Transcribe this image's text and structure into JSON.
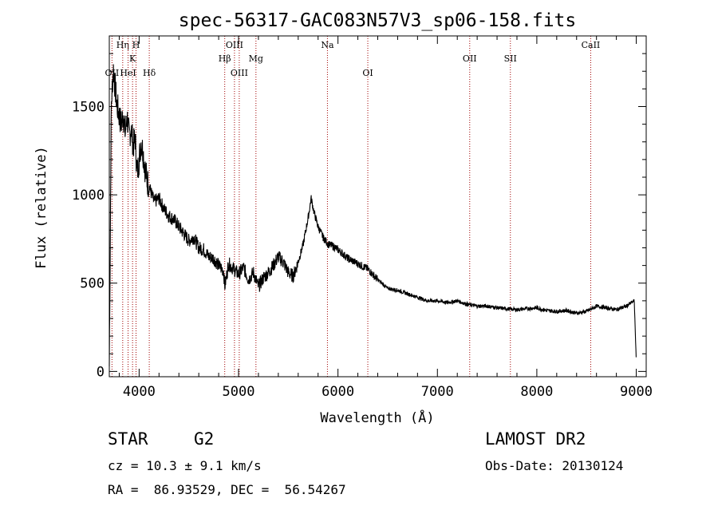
{
  "chart_data": {
    "type": "line",
    "title": "spec-56317-GAC083N57V3_sp06-158.fits",
    "xlabel": "Wavelength (Å)",
    "ylabel": "Flux (relative)",
    "xlim": [
      3700,
      9100
    ],
    "ylim": [
      -30,
      1900
    ],
    "x_ticks": [
      4000,
      5000,
      6000,
      7000,
      8000,
      9000
    ],
    "y_ticks": [
      0,
      500,
      1000,
      1500
    ],
    "x_tick_labels": [
      "4000",
      "5000",
      "6000",
      "7000",
      "8000",
      "9000"
    ],
    "y_tick_labels": [
      "0",
      "500",
      "1000",
      "1500"
    ],
    "grid": false,
    "series": [
      {
        "x": [
          3700,
          3720,
          3740,
          3760,
          3780,
          3800,
          3820,
          3840,
          3860,
          3880,
          3900,
          3920,
          3940,
          3960,
          3980,
          4000,
          4020,
          4040,
          4060,
          4080,
          4100,
          4150,
          4200,
          4250,
          4300,
          4350,
          4400,
          4450,
          4500,
          4550,
          4600,
          4650,
          4700,
          4750,
          4800,
          4850,
          4861,
          4900,
          4950,
          5000,
          5050,
          5100,
          5150,
          5200,
          5250,
          5300,
          5350,
          5400,
          5450,
          5500,
          5550,
          5600,
          5650,
          5700,
          5730,
          5760,
          5800,
          5850,
          5900,
          5950,
          6000,
          6100,
          6200,
          6300,
          6400,
          6500,
          6600,
          6700,
          6800,
          6900,
          7000,
          7100,
          7200,
          7300,
          7400,
          7500,
          7600,
          7700,
          7800,
          7900,
          8000,
          8100,
          8200,
          8300,
          8400,
          8500,
          8600,
          8700,
          8800,
          8900,
          8980,
          9000
        ],
        "y": [
          30,
          1500,
          1720,
          1600,
          1500,
          1450,
          1400,
          1460,
          1350,
          1440,
          1330,
          1380,
          1280,
          1320,
          1120,
          1200,
          1300,
          1240,
          1150,
          1080,
          1050,
          960,
          980,
          920,
          880,
          860,
          820,
          780,
          740,
          760,
          700,
          690,
          650,
          640,
          600,
          570,
          480,
          610,
          580,
          550,
          590,
          520,
          560,
          480,
          530,
          560,
          600,
          650,
          620,
          560,
          540,
          620,
          720,
          870,
          980,
          900,
          820,
          760,
          720,
          710,
          690,
          640,
          610,
          580,
          520,
          470,
          460,
          440,
          420,
          400,
          400,
          390,
          400,
          380,
          370,
          370,
          360,
          355,
          350,
          355,
          360,
          345,
          340,
          345,
          330,
          340,
          370,
          360,
          350,
          370,
          400,
          60
        ]
      }
    ],
    "lines": [
      {
        "name": "OII",
        "x": 3727,
        "row": 3
      },
      {
        "name": "Hη",
        "x": 3835,
        "row": 1
      },
      {
        "name": "HeI",
        "x": 3889,
        "row": 3
      },
      {
        "name": "K",
        "x": 3934,
        "row": 2
      },
      {
        "name": "H",
        "x": 3969,
        "row": 1
      },
      {
        "name": "Hδ",
        "x": 4102,
        "row": 3
      },
      {
        "name": "Hβ",
        "x": 4861,
        "row": 2
      },
      {
        "name": "OIII",
        "x": 4959,
        "row": 1
      },
      {
        "name": "OIII",
        "x": 5007,
        "row": 3
      },
      {
        "name": "Mg",
        "x": 5175,
        "row": 2
      },
      {
        "name": "Na",
        "x": 5894,
        "row": 1
      },
      {
        "name": "OI",
        "x": 6300,
        "row": 3
      },
      {
        "name": "OII",
        "x": 7325,
        "row": 2
      },
      {
        "name": "SII",
        "x": 7734,
        "row": 2
      },
      {
        "name": "CaII",
        "x": 8542,
        "row": 1
      }
    ],
    "line_color": "#a00000"
  },
  "footer": {
    "class_label": "STAR",
    "subclass": "G2",
    "survey": "LAMOST DR2",
    "cz": "cz = 10.3 ± 9.1 km/s",
    "obs_date": "Obs-Date: 20130124",
    "coords": "RA =  86.93529, DEC =  56.54267"
  }
}
